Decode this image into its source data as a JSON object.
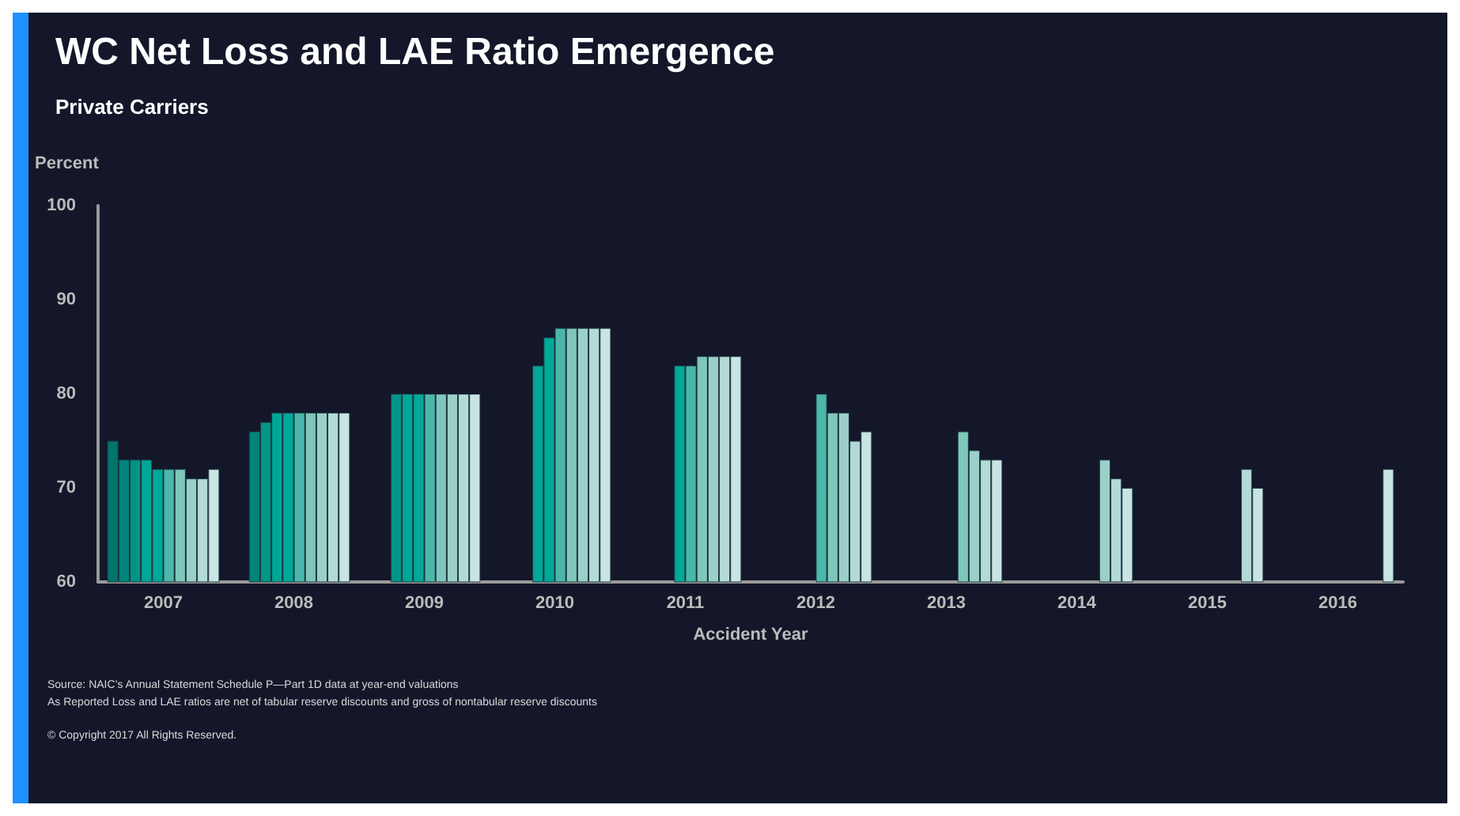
{
  "chart_data": {
    "type": "bar",
    "title": "WC Net Loss and LAE Ratio Emergence",
    "subtitle": "Private Carriers",
    "ylabel": "Percent",
    "xlabel": "Accident Year",
    "categories": [
      "2007",
      "2008",
      "2009",
      "2010",
      "2011",
      "2012",
      "2013",
      "2014",
      "2015",
      "2016"
    ],
    "series": [
      {
        "color": "#00756a",
        "values": [
          75,
          null,
          null,
          null,
          null,
          null,
          null,
          null,
          null,
          null
        ]
      },
      {
        "color": "#00857a",
        "values": [
          73,
          76,
          null,
          null,
          null,
          null,
          null,
          null,
          null,
          null
        ]
      },
      {
        "color": "#009587",
        "values": [
          73,
          77,
          80,
          null,
          null,
          null,
          null,
          null,
          null,
          null
        ]
      },
      {
        "color": "#00a697",
        "values": [
          73,
          78,
          80,
          83,
          null,
          null,
          null,
          null,
          null,
          null
        ]
      },
      {
        "color": "#00a99a",
        "values": [
          72,
          78,
          80,
          86,
          83,
          null,
          null,
          null,
          null,
          null
        ]
      },
      {
        "color": "#4bb7aa",
        "values": [
          72,
          78,
          80,
          87,
          83,
          80,
          null,
          null,
          null,
          null
        ]
      },
      {
        "color": "#7fc6bb",
        "values": [
          72,
          78,
          80,
          87,
          84,
          78,
          76,
          null,
          null,
          null
        ]
      },
      {
        "color": "#9bd0c8",
        "values": [
          71,
          78,
          80,
          87,
          84,
          78,
          74,
          73,
          null,
          null
        ]
      },
      {
        "color": "#b3dad7",
        "values": [
          71,
          78,
          80,
          87,
          84,
          75,
          73,
          71,
          72,
          null
        ]
      },
      {
        "color": "#c9e4e2",
        "values": [
          72,
          78,
          80,
          87,
          84,
          76,
          73,
          70,
          70,
          72
        ]
      }
    ],
    "ylim": [
      60,
      100
    ],
    "yticks": [
      60,
      70,
      80,
      90,
      100
    ],
    "grid": false,
    "annotations": [
      "Source: NAIC’s Annual Statement Schedule P—Part 1D data at year-end valuations",
      "As Reported Loss and LAE ratios are net of tabular reserve discounts and gross of nontabular reserve discounts",
      "© Copyright 2017 All Rights Reserved."
    ]
  }
}
